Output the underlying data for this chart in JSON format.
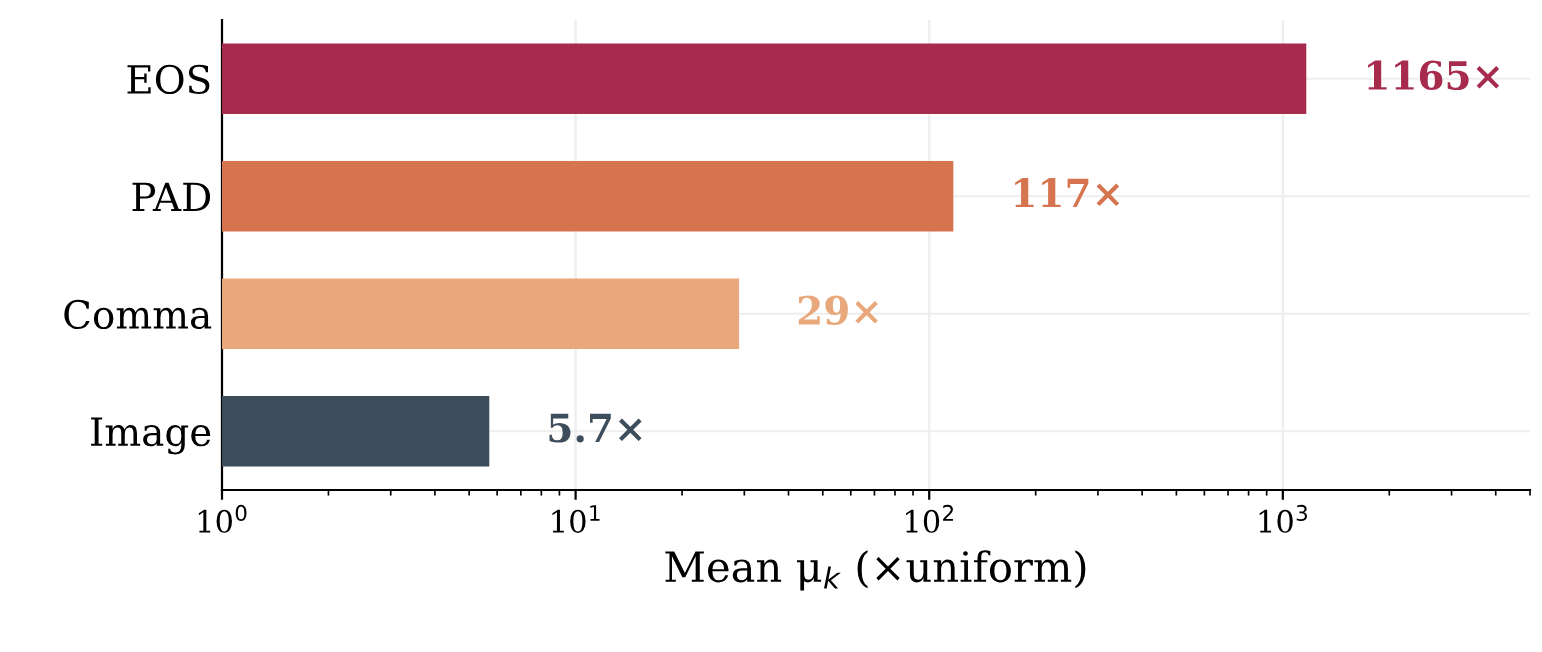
{
  "chart_data": {
    "type": "bar",
    "orientation": "horizontal",
    "log": "x",
    "categories": [
      "EOS",
      "PAD",
      "Comma",
      "Image"
    ],
    "values": [
      1165,
      117,
      29,
      5.7
    ],
    "colors": [
      "#a62b4c",
      "#d5744f",
      "#e8a87c",
      "#3d4d5c"
    ],
    "value_labels": [
      "1165×",
      "117×",
      "29×",
      "5.7×"
    ],
    "xlabel": "Mean μ$_{k}$ (×uniform)",
    "xlim": [
      1,
      5000
    ],
    "xticks": [
      {
        "value": 1,
        "label": "10$^{0}$"
      },
      {
        "value": 10,
        "label": "10$^{1}$"
      },
      {
        "value": 100,
        "label": "10$^{2}$"
      },
      {
        "value": 1000,
        "label": "10$^{3}$"
      }
    ],
    "grid": true
  }
}
